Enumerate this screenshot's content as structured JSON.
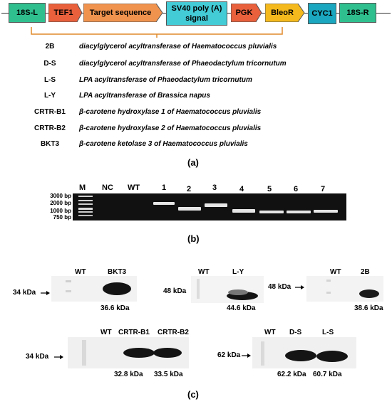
{
  "colors": {
    "teal": "#2fbf8f",
    "orange_red": "#e8603c",
    "orange": "#f0934e",
    "cyan": "#43cbd6",
    "yellow": "#f4b91c",
    "dark_cyan": "#1aa7bf",
    "bracket": "#e08a2c",
    "gel_bg": "#111111",
    "band": "#e6e6e6"
  },
  "construct": {
    "s18_left": "18S-L",
    "tef1": "TEF1",
    "target": "Target sequence",
    "sv40_line1": "SV40 poly (A)",
    "sv40_line2": "signal",
    "pgk": "PGK",
    "bleor": "BleoR",
    "cyc1": "CYC1",
    "s18_right": "18S-R"
  },
  "genes": [
    {
      "code": "2B",
      "desc": "diacylglycerol acyltransferase of Haematococcus pluvialis"
    },
    {
      "code": "D-S",
      "desc": "diacylglycerol acyltransferase of Phaeodactylum tricornutum"
    },
    {
      "code": "L-S",
      "desc": "LPA acyltransferase of Phaeodactylum tricornutum"
    },
    {
      "code": "L-Y",
      "desc": "LPA acyltransferase of Brassica napus"
    },
    {
      "code": "CRTR-B1",
      "desc": "β-carotene hydroxylase 1 of Haematococcus pluvialis"
    },
    {
      "code": "CRTR-B2",
      "desc": "β-carotene hydroxylase 2 of Haematococcus pluvialis"
    },
    {
      "code": "BKT3",
      "desc": "β-carotene ketolase 3 of Haematococcus pluvialis"
    }
  ],
  "panels": {
    "a": "(a)",
    "b": "(b)",
    "c": "(c)"
  },
  "gel": {
    "lanes": [
      "M",
      "NC",
      "WT",
      "1",
      "2",
      "3",
      "4",
      "5",
      "6",
      "7"
    ],
    "ladder": [
      "3000 bp",
      "2000 bp",
      "1000 bp",
      "750 bp"
    ]
  },
  "blots": {
    "bkt3": {
      "wt": "WT",
      "lane": "BKT3",
      "marker": "34 kDa",
      "size": "36.6 kDa"
    },
    "ly": {
      "wt": "WT",
      "lane": "L-Y",
      "marker": "48 kDa",
      "size": "44.6 kDa"
    },
    "b2": {
      "wt": "WT",
      "lane": "2B",
      "marker": "48 kDa",
      "size": "38.6 kDa"
    },
    "crtr": {
      "wt": "WT",
      "lane1": "CRTR-B1",
      "lane2": "CRTR-B2",
      "marker": "34 kDa",
      "size1": "32.8 kDa",
      "size2": "33.5 kDa"
    },
    "ds": {
      "wt": "WT",
      "lane1": "D-S",
      "lane2": "L-S",
      "marker": "62 kDa",
      "size1": "62.2 kDa",
      "size2": "60.7 kDa"
    }
  }
}
